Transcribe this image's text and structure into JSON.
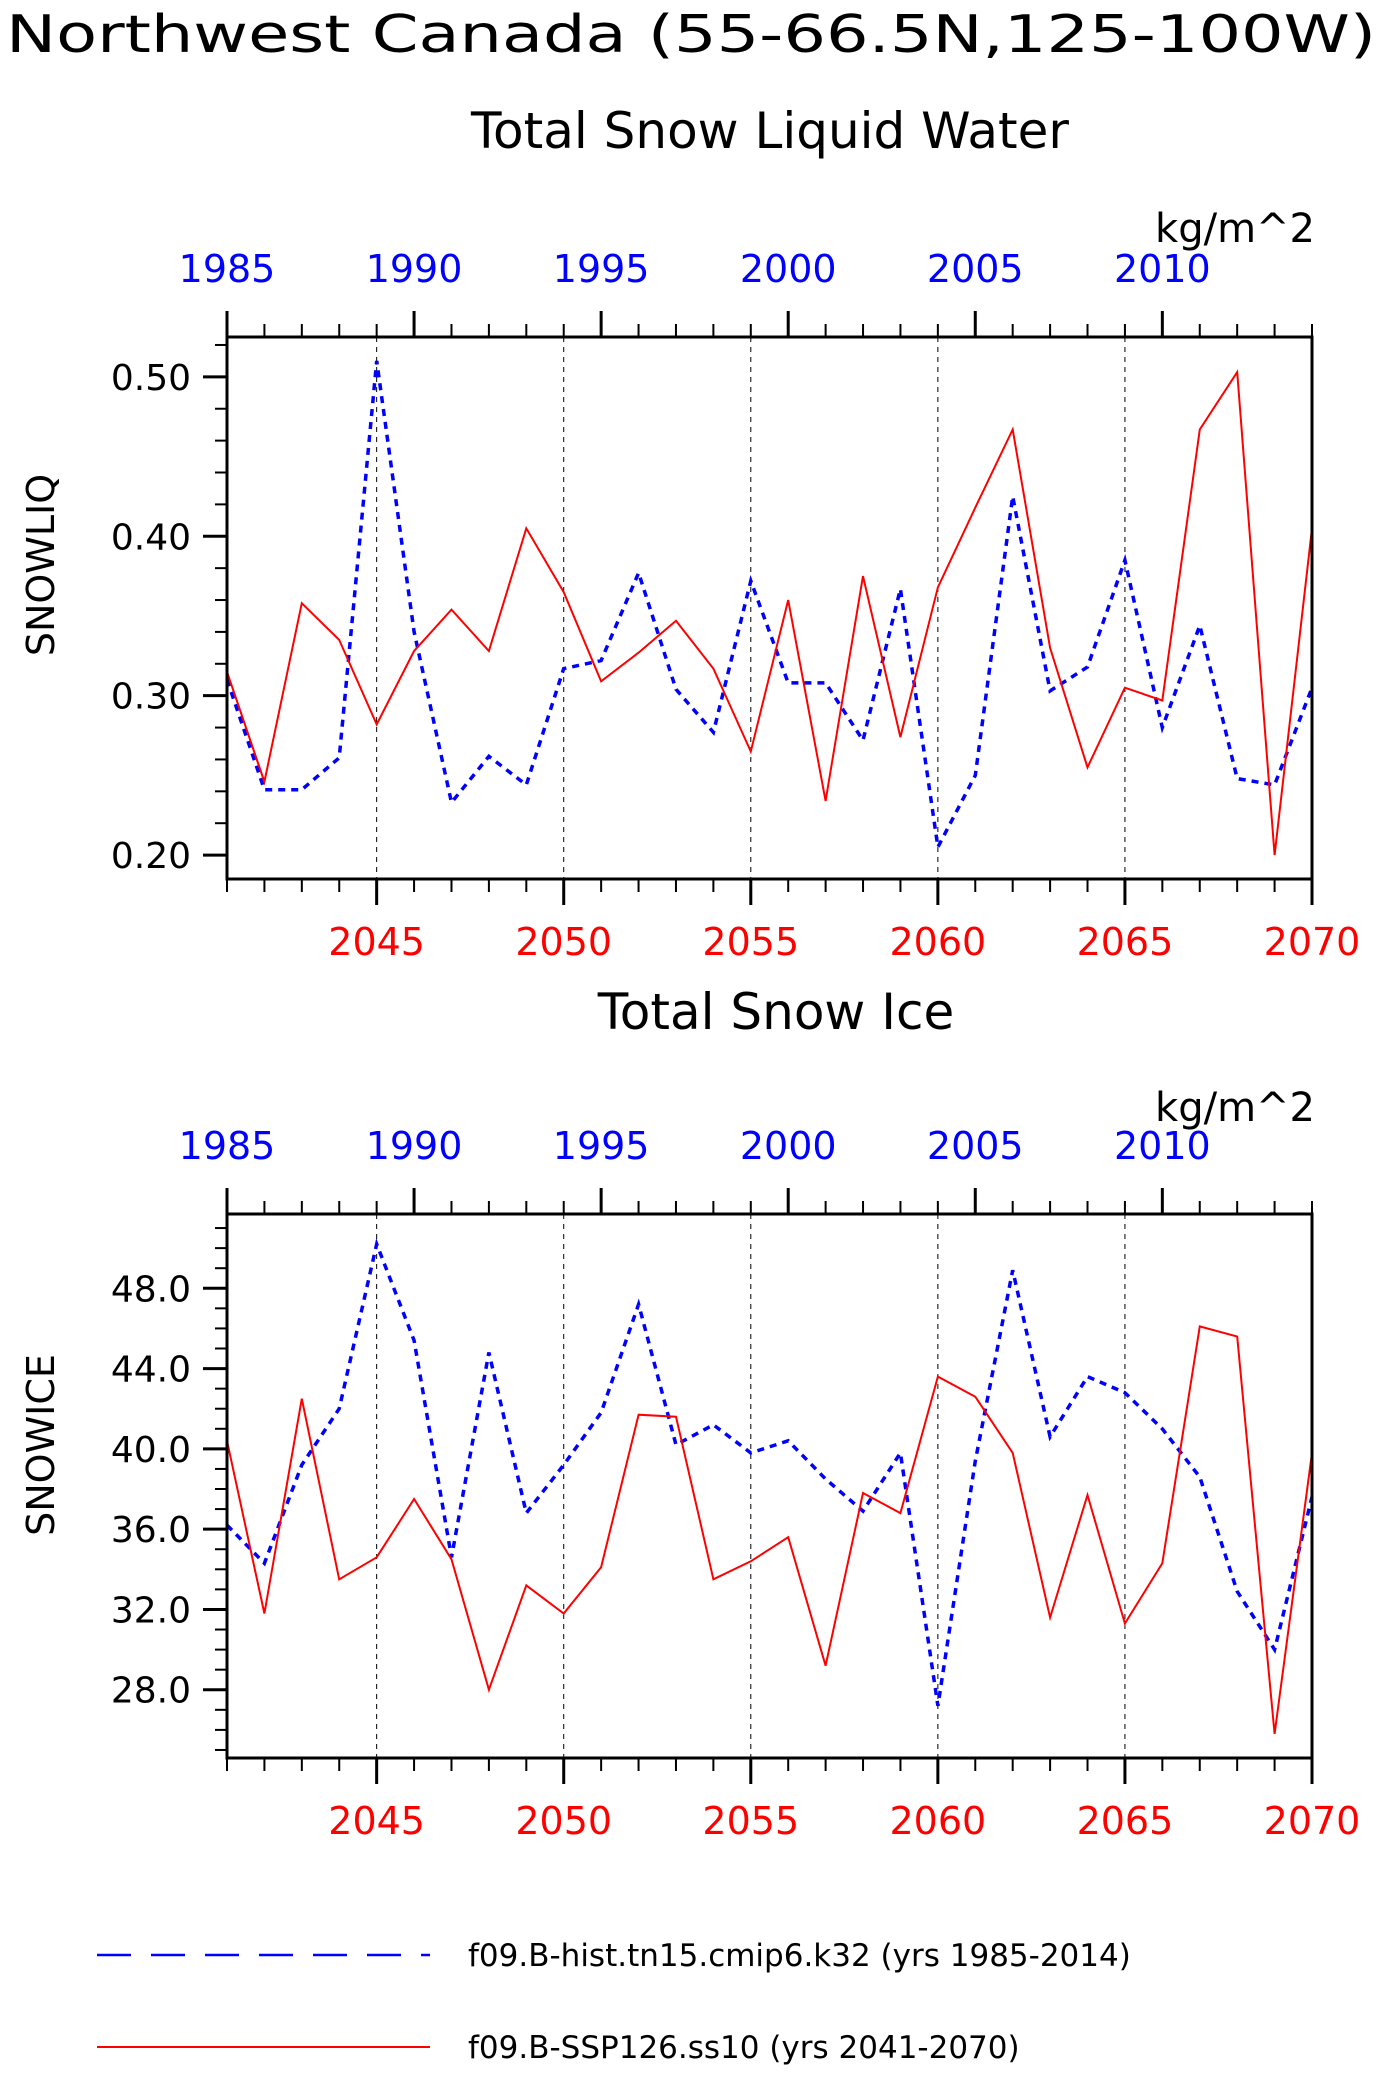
{
  "figure": {
    "title_line1": "Northwest Canada (55-66.5N,125-100W)",
    "colors": {
      "hist": "#0000ff",
      "ssp": "#ff0000",
      "axis": "#000000",
      "grid": "#000000"
    }
  },
  "legend": {
    "hist_label": "f09.B-hist.tn15.cmip6.k32 (yrs 1985-2014)",
    "ssp_label": "f09.B-SSP126.ss10 (yrs 2041-2070)"
  },
  "chart_data": [
    {
      "type": "line",
      "title": "Total Snow Liquid Water",
      "units": "kg/m^2",
      "ylabel": "SNOWLIQ",
      "ylim": [
        0.185,
        0.525
      ],
      "yticks": [
        0.2,
        0.3,
        0.4,
        0.5
      ],
      "ytick_labels": [
        "0.20",
        "0.30",
        "0.40",
        "0.50"
      ],
      "y_minor_step": 0.02,
      "grid": "vertical dashed at bottom-axis major ticks",
      "x_bottom": {
        "range": [
          2041,
          2070
        ],
        "ticks": [
          "2045",
          "2050",
          "2055",
          "2060",
          "2065",
          "2070"
        ]
      },
      "x_top": {
        "range": [
          1985,
          2014
        ],
        "ticks": [
          "1985",
          "1990",
          "1995",
          "2000",
          "2005",
          "2010"
        ]
      },
      "series": [
        {
          "name": "f09.B-hist.tn15.cmip6.k32 (yrs 1985-2014)",
          "style": "dashed",
          "x": [
            1985,
            1986,
            1987,
            1988,
            1989,
            1990,
            1991,
            1992,
            1993,
            1994,
            1995,
            1996,
            1997,
            1998,
            1999,
            2000,
            2001,
            2002,
            2003,
            2004,
            2005,
            2006,
            2007,
            2008,
            2009,
            2010,
            2011,
            2012,
            2013,
            2014
          ],
          "values": [
            0.31,
            0.241,
            0.241,
            0.261,
            0.51,
            0.34,
            0.233,
            0.262,
            0.244,
            0.317,
            0.322,
            0.377,
            0.304,
            0.277,
            0.372,
            0.308,
            0.308,
            0.272,
            0.367,
            0.205,
            0.25,
            0.425,
            0.303,
            0.318,
            0.385,
            0.28,
            0.344,
            0.248,
            0.244,
            0.305
          ]
        },
        {
          "name": "f09.B-SSP126.ss10 (yrs 2041-2070)",
          "style": "solid",
          "x": [
            2041,
            2042,
            2043,
            2044,
            2045,
            2046,
            2047,
            2048,
            2049,
            2050,
            2051,
            2052,
            2053,
            2054,
            2055,
            2056,
            2057,
            2058,
            2059,
            2060,
            2061,
            2062,
            2063,
            2064,
            2065,
            2066,
            2067,
            2068,
            2069,
            2070
          ],
          "values": [
            0.315,
            0.246,
            0.358,
            0.335,
            0.282,
            0.328,
            0.354,
            0.328,
            0.405,
            0.365,
            0.309,
            0.327,
            0.347,
            0.317,
            0.265,
            0.36,
            0.234,
            0.375,
            0.274,
            0.368,
            0.418,
            0.467,
            0.33,
            0.255,
            0.305,
            0.297,
            0.467,
            0.503,
            0.2,
            0.405
          ]
        }
      ]
    },
    {
      "type": "line",
      "title": "Total Snow Ice",
      "units": "kg/m^2",
      "ylabel": "SNOWICE",
      "ylim": [
        24.6,
        51.7
      ],
      "yticks": [
        28.0,
        32.0,
        36.0,
        40.0,
        44.0,
        48.0
      ],
      "ytick_labels": [
        "28.0",
        "32.0",
        "36.0",
        "40.0",
        "44.0",
        "48.0"
      ],
      "y_minor_step": 1.0,
      "grid": "vertical dashed at bottom-axis major ticks",
      "x_bottom": {
        "range": [
          2041,
          2070
        ],
        "ticks": [
          "2045",
          "2050",
          "2055",
          "2060",
          "2065",
          "2070"
        ]
      },
      "x_top": {
        "range": [
          1985,
          2014
        ],
        "ticks": [
          "1985",
          "1990",
          "1995",
          "2000",
          "2005",
          "2010"
        ]
      },
      "series": [
        {
          "name": "f09.B-hist.tn15.cmip6.k32 (yrs 1985-2014)",
          "style": "dashed",
          "x": [
            1985,
            1986,
            1987,
            1988,
            1989,
            1990,
            1991,
            1992,
            1993,
            1994,
            1995,
            1996,
            1997,
            1998,
            1999,
            2000,
            2001,
            2002,
            2003,
            2004,
            2005,
            2006,
            2007,
            2008,
            2009,
            2010,
            2011,
            2012,
            2013,
            2014
          ],
          "values": [
            36.2,
            34.3,
            39.2,
            42.0,
            50.2,
            45.4,
            34.6,
            44.8,
            36.8,
            39.2,
            41.8,
            47.2,
            40.2,
            41.2,
            39.8,
            40.4,
            38.5,
            36.9,
            39.8,
            27.2,
            39.4,
            48.9,
            40.6,
            43.6,
            42.8,
            41.0,
            38.6,
            32.9,
            30.0,
            37.6
          ]
        },
        {
          "name": "f09.B-SSP126.ss10 (yrs 2041-2070)",
          "style": "solid",
          "x": [
            2041,
            2042,
            2043,
            2044,
            2045,
            2046,
            2047,
            2048,
            2049,
            2050,
            2051,
            2052,
            2053,
            2054,
            2055,
            2056,
            2057,
            2058,
            2059,
            2060,
            2061,
            2062,
            2063,
            2064,
            2065,
            2066,
            2067,
            2068,
            2069,
            2070
          ],
          "values": [
            40.4,
            31.8,
            42.5,
            33.5,
            34.6,
            37.5,
            34.5,
            28.0,
            33.2,
            31.8,
            34.1,
            41.7,
            41.6,
            33.5,
            34.4,
            35.6,
            29.2,
            37.8,
            36.8,
            43.6,
            42.6,
            39.8,
            31.6,
            37.7,
            31.3,
            34.3,
            46.1,
            45.6,
            25.8,
            39.8
          ]
        }
      ]
    }
  ]
}
